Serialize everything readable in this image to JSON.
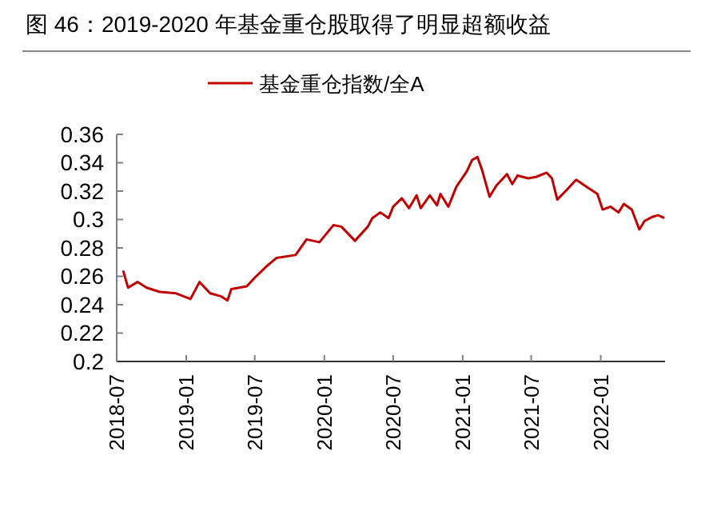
{
  "chart_data": {
    "type": "line",
    "title": "图 46：2019-2020 年基金重仓股取得了明显超额收益",
    "x": [
      "2018-07-18",
      "2018-07-31",
      "2018-08-25",
      "2018-09-18",
      "2018-10-23",
      "2018-12-05",
      "2019-01-12",
      "2019-02-05",
      "2019-03-05",
      "2019-04-02",
      "2019-04-20",
      "2019-04-30",
      "2019-06-10",
      "2019-07-01",
      "2019-08-01",
      "2019-08-28",
      "2019-10-17",
      "2019-11-15",
      "2019-12-19",
      "2020-01-25",
      "2020-02-15",
      "2020-03-22",
      "2020-04-25",
      "2020-05-07",
      "2020-05-28",
      "2020-06-19",
      "2020-07-01",
      "2020-07-24",
      "2020-08-12",
      "2020-09-01",
      "2020-09-12",
      "2020-10-06",
      "2020-10-25",
      "2020-11-03",
      "2020-11-24",
      "2020-12-15",
      "2021-01-12",
      "2021-01-26",
      "2021-02-09",
      "2021-02-21",
      "2021-03-13",
      "2021-03-31",
      "2021-04-28",
      "2021-05-12",
      "2021-05-26",
      "2021-06-23",
      "2021-07-14",
      "2021-08-11",
      "2021-08-25",
      "2021-09-08",
      "2021-09-30",
      "2021-10-28",
      "2021-11-25",
      "2021-12-23",
      "2022-01-06",
      "2022-01-27",
      "2022-02-17",
      "2022-03-03",
      "2022-03-24",
      "2022-04-13",
      "2022-04-27",
      "2022-05-19",
      "2022-06-02",
      "2022-06-18"
    ],
    "series": [
      {
        "name": "基金重仓指数/全A",
        "color": "#c00000",
        "values": [
          0.264,
          0.252,
          0.256,
          0.252,
          0.249,
          0.248,
          0.244,
          0.256,
          0.248,
          0.246,
          0.243,
          0.251,
          0.253,
          0.259,
          0.267,
          0.273,
          0.275,
          0.286,
          0.284,
          0.296,
          0.295,
          0.285,
          0.295,
          0.301,
          0.305,
          0.301,
          0.309,
          0.315,
          0.308,
          0.317,
          0.308,
          0.317,
          0.31,
          0.318,
          0.309,
          0.323,
          0.334,
          0.342,
          0.344,
          0.335,
          0.316,
          0.324,
          0.332,
          0.325,
          0.331,
          0.329,
          0.33,
          0.333,
          0.329,
          0.314,
          0.32,
          0.328,
          0.323,
          0.318,
          0.307,
          0.309,
          0.305,
          0.311,
          0.307,
          0.293,
          0.299,
          0.302,
          0.303,
          0.301
        ]
      }
    ],
    "xlim": [
      "2018-07-01",
      "2022-06-20"
    ],
    "xticks": [
      {
        "value": "2018-07-01",
        "label": "2018-07"
      },
      {
        "value": "2019-01-01",
        "label": "2019-01"
      },
      {
        "value": "2019-07-01",
        "label": "2019-07"
      },
      {
        "value": "2020-01-01",
        "label": "2020-01"
      },
      {
        "value": "2020-07-01",
        "label": "2020-07"
      },
      {
        "value": "2021-01-01",
        "label": "2021-01"
      },
      {
        "value": "2021-07-01",
        "label": "2021-07"
      },
      {
        "value": "2022-01-01",
        "label": "2022-01"
      }
    ],
    "ylim": [
      0.2,
      0.36
    ],
    "yticks": [
      0.2,
      0.22,
      0.24,
      0.26,
      0.28,
      0.3,
      0.32,
      0.34,
      0.36
    ],
    "grid": false,
    "legend": "top",
    "marker": "none",
    "line_style": "solid"
  }
}
